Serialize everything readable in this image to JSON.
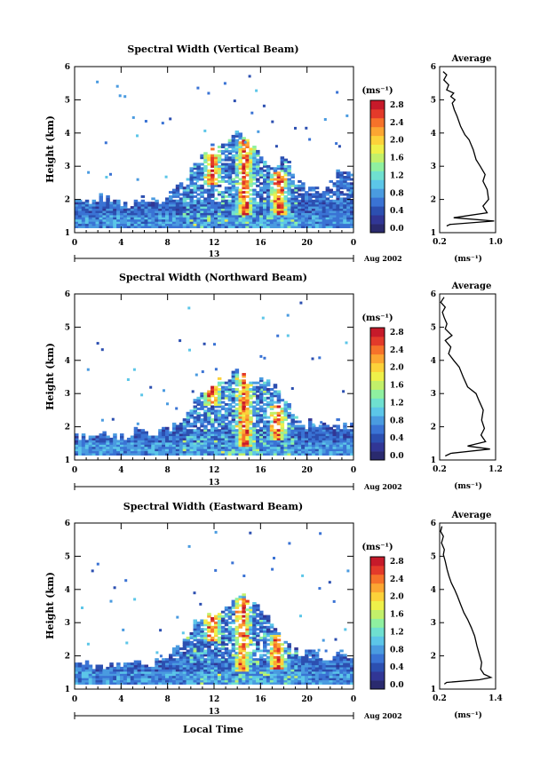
{
  "chart_data": [
    {
      "type": "heatmap",
      "title": "Spectral Width (Vertical Beam)",
      "ylabel": "Height (km)",
      "xlim": [
        0,
        24
      ],
      "ylim": [
        1,
        6
      ],
      "xticks": [
        "0",
        "4",
        "8",
        "12",
        "16",
        "20",
        "0"
      ],
      "yticks": [
        "1",
        "2",
        "3",
        "4",
        "5",
        "6"
      ],
      "day_label": "13",
      "date_label": "Aug 2002",
      "colorbar": {
        "unit": "(ms⁻¹)",
        "ticks": [
          "0.0",
          "0.4",
          "0.8",
          "1.2",
          "1.6",
          "2.0",
          "2.4",
          "2.8"
        ],
        "range": [
          0.0,
          3.0
        ]
      },
      "cloud_tops": [
        1.9,
        1.9,
        2.0,
        2.1,
        1.9,
        1.8,
        1.8,
        1.8,
        2.0,
        2.1,
        2.0,
        2.1,
        2.3,
        2.5,
        3.2,
        3.3,
        3.5,
        3.6,
        3.8,
        3.9,
        3.8,
        3.6,
        3.3,
        3.0,
        3.1,
        3.3,
        2.5,
        2.3,
        2.4,
        2.2,
        2.6,
        2.8,
        2.9,
        2.6
      ],
      "intense": [
        [
          11.7,
          2.4,
          3.5
        ],
        [
          14.5,
          1.5,
          3.8
        ],
        [
          17.5,
          1.5,
          2.8
        ]
      ],
      "average": {
        "title": "Average",
        "xlabel": "(ms⁻¹)",
        "xlim": [
          0.2,
          1.0
        ],
        "xticks": [
          "0.2",
          "1.0"
        ],
        "profile": [
          [
            0.25,
            5.85
          ],
          [
            0.3,
            5.75
          ],
          [
            0.26,
            5.6
          ],
          [
            0.33,
            5.45
          ],
          [
            0.3,
            5.3
          ],
          [
            0.4,
            5.2
          ],
          [
            0.36,
            5.1
          ],
          [
            0.42,
            5.0
          ],
          [
            0.38,
            4.9
          ],
          [
            0.41,
            4.7
          ],
          [
            0.45,
            4.5
          ],
          [
            0.5,
            4.2
          ],
          [
            0.56,
            3.95
          ],
          [
            0.62,
            3.8
          ],
          [
            0.68,
            3.5
          ],
          [
            0.72,
            3.2
          ],
          [
            0.78,
            3.0
          ],
          [
            0.85,
            2.75
          ],
          [
            0.82,
            2.55
          ],
          [
            0.88,
            2.3
          ],
          [
            0.9,
            2.0
          ],
          [
            0.82,
            1.8
          ],
          [
            0.88,
            1.6
          ],
          [
            0.4,
            1.45
          ],
          [
            0.98,
            1.35
          ],
          [
            0.35,
            1.25
          ],
          [
            0.3,
            1.2
          ]
        ]
      }
    },
    {
      "type": "heatmap",
      "title": "Spectral Width (Northward Beam)",
      "ylabel": "Height (km)",
      "xlim": [
        0,
        24
      ],
      "ylim": [
        1,
        6
      ],
      "xticks": [
        "0",
        "4",
        "8",
        "12",
        "16",
        "20",
        "0"
      ],
      "yticks": [
        "1",
        "2",
        "3",
        "4",
        "5",
        "6"
      ],
      "day_label": "13",
      "date_label": "Aug 2002",
      "colorbar": {
        "unit": "(ms⁻¹)",
        "ticks": [
          "0.0",
          "0.4",
          "0.8",
          "1.2",
          "1.6",
          "2.0",
          "2.4",
          "2.8"
        ],
        "range": [
          0.0,
          3.0
        ]
      },
      "cloud_tops": [
        1.7,
        1.6,
        1.6,
        1.7,
        1.7,
        1.6,
        1.7,
        1.8,
        1.8,
        1.7,
        1.8,
        1.9,
        2.1,
        2.4,
        2.8,
        3.0,
        3.3,
        3.4,
        3.5,
        3.6,
        3.5,
        3.4,
        3.4,
        3.3,
        2.9,
        2.6,
        2.3,
        2.0,
        2.1,
        2.0,
        2.2,
        2.1,
        2.0,
        1.9
      ],
      "intense": [
        [
          11.7,
          2.6,
          3.5
        ],
        [
          14.5,
          1.4,
          3.6
        ],
        [
          17.3,
          1.6,
          2.6
        ]
      ],
      "average": {
        "title": "Average",
        "xlabel": "(ms⁻¹)",
        "xlim": [
          0.2,
          1.2
        ],
        "xticks": [
          "0.2",
          "1.2"
        ],
        "profile": [
          [
            0.28,
            5.9
          ],
          [
            0.22,
            5.75
          ],
          [
            0.3,
            5.6
          ],
          [
            0.25,
            5.45
          ],
          [
            0.28,
            5.3
          ],
          [
            0.33,
            5.1
          ],
          [
            0.3,
            4.95
          ],
          [
            0.42,
            4.75
          ],
          [
            0.3,
            4.6
          ],
          [
            0.4,
            4.4
          ],
          [
            0.36,
            4.2
          ],
          [
            0.45,
            4.0
          ],
          [
            0.55,
            3.8
          ],
          [
            0.62,
            3.5
          ],
          [
            0.7,
            3.2
          ],
          [
            0.85,
            3.0
          ],
          [
            0.9,
            2.8
          ],
          [
            0.98,
            2.5
          ],
          [
            0.95,
            2.2
          ],
          [
            1.0,
            1.95
          ],
          [
            0.94,
            1.75
          ],
          [
            1.02,
            1.55
          ],
          [
            0.7,
            1.42
          ],
          [
            1.1,
            1.33
          ],
          [
            0.4,
            1.2
          ],
          [
            0.3,
            1.12
          ]
        ]
      }
    },
    {
      "type": "heatmap",
      "title": "Spectral Width (Eastward Beam)",
      "ylabel": "Height (km)",
      "xlabel": "Local Time",
      "xlim": [
        0,
        24
      ],
      "ylim": [
        1,
        6
      ],
      "xticks": [
        "0",
        "4",
        "8",
        "12",
        "16",
        "20",
        "0"
      ],
      "yticks": [
        "1",
        "2",
        "3",
        "4",
        "5",
        "6"
      ],
      "day_label": "13",
      "date_label": "Aug 2002",
      "colorbar": {
        "unit": "(ms⁻¹)",
        "ticks": [
          "0.0",
          "0.4",
          "0.8",
          "1.2",
          "1.6",
          "2.0",
          "2.4",
          "2.8"
        ],
        "range": [
          0.0,
          3.0
        ]
      },
      "cloud_tops": [
        1.7,
        1.7,
        1.7,
        1.7,
        1.7,
        1.7,
        1.7,
        1.7,
        1.8,
        1.7,
        1.8,
        1.9,
        2.2,
        2.5,
        3.0,
        3.2,
        3.3,
        3.4,
        3.6,
        3.8,
        3.7,
        3.5,
        3.2,
        3.0,
        2.6,
        2.4,
        2.1,
        2.0,
        2.2,
        2.0,
        1.9,
        2.0,
        2.0,
        1.8
      ],
      "intense": [
        [
          11.7,
          2.4,
          3.4
        ],
        [
          14.3,
          1.5,
          3.7
        ],
        [
          17.3,
          1.6,
          2.6
        ]
      ],
      "average": {
        "title": "Average",
        "xlabel": "(ms⁻¹)",
        "xlim": [
          0.2,
          1.4
        ],
        "xticks": [
          "0.2",
          "1.4"
        ],
        "profile": [
          [
            0.25,
            5.9
          ],
          [
            0.22,
            5.75
          ],
          [
            0.28,
            5.6
          ],
          [
            0.24,
            5.4
          ],
          [
            0.3,
            5.2
          ],
          [
            0.28,
            5.05
          ],
          [
            0.32,
            4.85
          ],
          [
            0.36,
            4.6
          ],
          [
            0.4,
            4.4
          ],
          [
            0.45,
            4.2
          ],
          [
            0.52,
            4.0
          ],
          [
            0.58,
            3.8
          ],
          [
            0.65,
            3.55
          ],
          [
            0.72,
            3.3
          ],
          [
            0.8,
            3.1
          ],
          [
            0.88,
            2.85
          ],
          [
            0.95,
            2.6
          ],
          [
            1.0,
            2.3
          ],
          [
            1.05,
            2.05
          ],
          [
            1.1,
            1.8
          ],
          [
            1.08,
            1.6
          ],
          [
            1.15,
            1.45
          ],
          [
            1.3,
            1.35
          ],
          [
            1.05,
            1.28
          ],
          [
            0.35,
            1.2
          ],
          [
            0.3,
            1.15
          ]
        ]
      }
    }
  ]
}
